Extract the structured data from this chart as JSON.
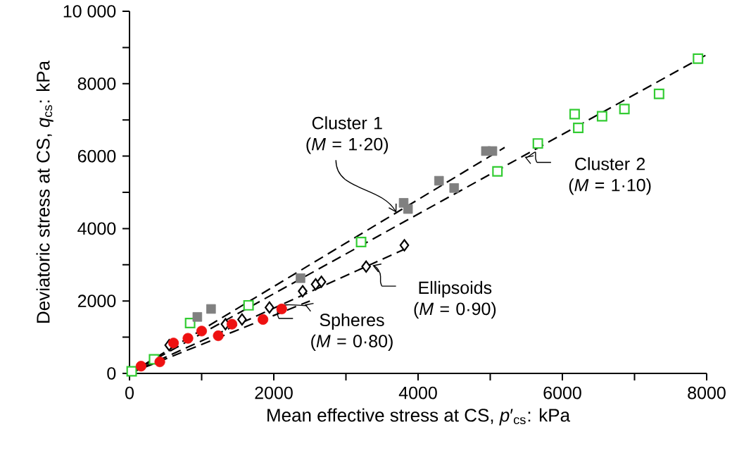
{
  "chart_data": {
    "type": "scatter",
    "xlabel": "Mean effective stress at CS, *p*′$_{cs}$: kPa",
    "ylabel": "Deviatoric stress at CS, *q*$_{cs}$: kPa",
    "xlim": [
      0,
      8000
    ],
    "ylim": [
      0,
      10000
    ],
    "xticks": [
      0,
      {
        "value": 1000,
        "label": null
      },
      2000,
      {
        "value": 3000,
        "label": null
      },
      4000,
      {
        "value": 5000,
        "label": null
      },
      6000,
      {
        "value": 7000,
        "label": null
      },
      8000
    ],
    "yticks": [
      0,
      {
        "value": 1000,
        "label": null
      },
      2000,
      {
        "value": 3000,
        "label": null
      },
      4000,
      {
        "value": 5000,
        "label": null
      },
      6000,
      {
        "value": 7000,
        "label": null
      },
      8000,
      {
        "value": 9000,
        "label": null
      },
      {
        "value": 10000,
        "label": "10 000"
      }
    ],
    "grid": false,
    "series": [
      {
        "type": "line",
        "color": "#000000",
        "line_style": "dashed",
        "marker": "none",
        "x": [
          0,
          5200
        ],
        "values": [
          0,
          6240
        ]
      },
      {
        "type": "line",
        "color": "#000000",
        "line_style": "dashed",
        "marker": "none",
        "x": [
          0,
          8000
        ],
        "values": [
          0,
          8800
        ]
      },
      {
        "type": "line",
        "color": "#000000",
        "line_style": "dashed",
        "marker": "none",
        "x": [
          0,
          3800
        ],
        "values": [
          0,
          3420
        ]
      },
      {
        "type": "line",
        "color": "#000000",
        "line_style": "dashed",
        "marker": "none",
        "x": [
          0,
          2500
        ],
        "values": [
          0,
          2000
        ]
      },
      {
        "color": "#33cc33",
        "marker": "square",
        "x": [
          30,
          340,
          840,
          1650,
          3210,
          5100,
          5660,
          6220,
          6170,
          6550,
          6860,
          7340,
          7880
        ],
        "values": [
          60,
          390,
          1390,
          1880,
          3630,
          5580,
          6350,
          6780,
          7160,
          7100,
          7300,
          7720,
          8690
        ]
      },
      {
        "color": "#808080",
        "marker": "square",
        "x": [
          940,
          1130,
          2370,
          3800,
          3860,
          4290,
          4500,
          4940,
          5030
        ],
        "values": [
          1560,
          1780,
          2630,
          4710,
          4540,
          5320,
          5120,
          6140,
          6140
        ]
      },
      {
        "color": "#000000",
        "marker": "diamond",
        "x": [
          550,
          1330,
          1560,
          1940,
          2400,
          2580,
          2660,
          3280,
          3810
        ],
        "values": [
          780,
          1360,
          1490,
          1820,
          2270,
          2460,
          2530,
          2950,
          3540
        ]
      },
      {
        "color": "#ee1111",
        "marker": "circle",
        "x": [
          160,
          420,
          610,
          810,
          1000,
          1230,
          1420,
          1850,
          2110
        ],
        "values": [
          200,
          320,
          840,
          970,
          1170,
          1040,
          1360,
          1490,
          1780
        ]
      }
    ],
    "annotations": [
      {
        "text": "Cluster 1 (*M* = 1·20)",
        "x": 3700,
        "y": 4440
      },
      {
        "text": "Cluster 2 (*M* = 1·10)",
        "x": 5450,
        "y": 5995
      },
      {
        "text": "Ellipsoids (*M* = 0·90)",
        "x": 3340,
        "y": 3006
      },
      {
        "text": "Spheres (*M* = 0·80)",
        "x": 2400,
        "y": 1920
      }
    ]
  }
}
